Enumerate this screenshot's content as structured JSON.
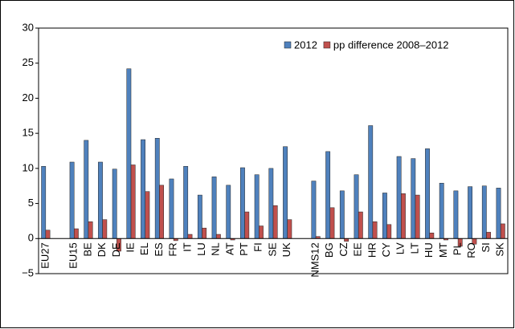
{
  "chart_data": {
    "type": "bar",
    "categories": [
      "EU27",
      null,
      "EU15",
      "BE",
      "DK",
      "DE",
      "IE",
      "EL",
      "ES",
      "FR",
      "IT",
      "LU",
      "NL",
      "AT",
      "PT",
      "FI",
      "SE",
      "UK",
      null,
      "NMS12",
      "BG",
      "CZ",
      "EE",
      "HR",
      "CY",
      "LV",
      "LT",
      "HU",
      "MT",
      "PL",
      "RO",
      "SI",
      "SK"
    ],
    "series": [
      {
        "name": "2012",
        "color": "#4f81bd",
        "values": [
          10.3,
          null,
          10.9,
          14.0,
          10.9,
          9.9,
          24.2,
          14.1,
          14.3,
          8.5,
          10.3,
          6.2,
          8.8,
          7.6,
          10.1,
          9.1,
          10.0,
          13.1,
          null,
          8.2,
          12.4,
          6.8,
          9.1,
          16.1,
          6.5,
          11.7,
          11.4,
          12.8,
          7.9,
          6.8,
          7.4,
          7.5,
          7.2
        ]
      },
      {
        "name": "pp difference 2008–2012",
        "color": "#c0504d",
        "values": [
          1.2,
          null,
          1.4,
          2.4,
          2.7,
          -1.8,
          10.5,
          6.7,
          7.6,
          -0.3,
          0.6,
          1.5,
          0.6,
          -0.2,
          3.8,
          1.8,
          4.7,
          2.7,
          null,
          0.3,
          4.4,
          -0.4,
          3.8,
          2.4,
          2.0,
          6.4,
          6.2,
          0.8,
          -0.2,
          -1.1,
          -0.8,
          0.9,
          2.1
        ]
      }
    ],
    "ylim": [
      -5,
      30
    ],
    "yticks": [
      {
        "value": -5,
        "label": "−5"
      },
      0,
      5,
      10,
      15,
      20,
      25,
      30
    ],
    "legend": "top-right"
  }
}
